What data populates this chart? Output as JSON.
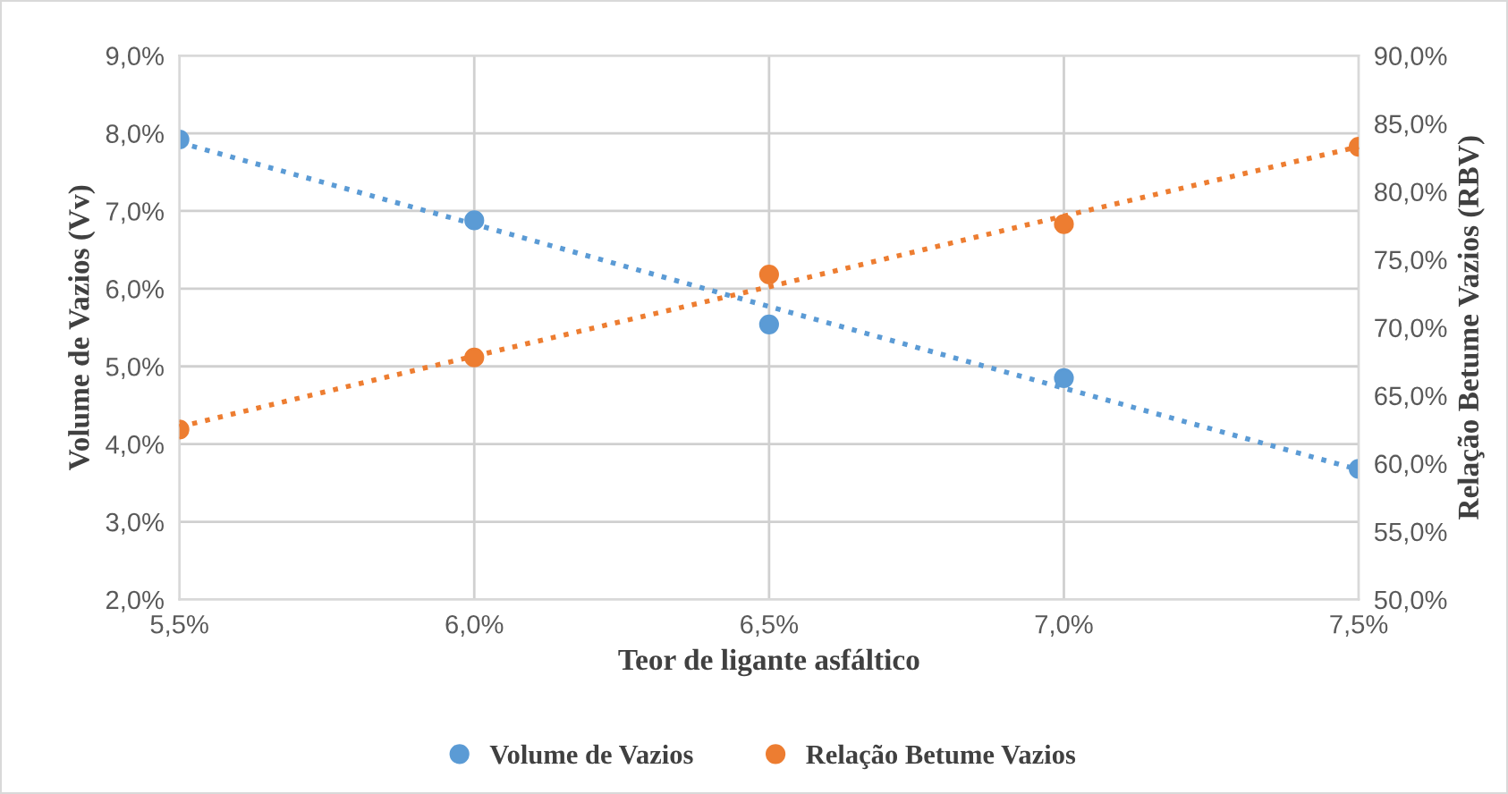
{
  "chart_data": {
    "type": "scatter",
    "xlabel": "Teor de ligante asfáltico",
    "ylabel": "Volume de Vazios (Vv)",
    "y2label": "Relação Betume Vazios (RBV)",
    "x": [
      5.5,
      6.0,
      6.5,
      7.0,
      7.5
    ],
    "series": [
      {
        "name": "Volume de Vazios",
        "color": "#5b9bd5",
        "values": [
          7.92,
          6.88,
          5.54,
          4.85,
          3.68
        ]
      },
      {
        "name": "Relação Betume Vazios",
        "color": "#ed7d31",
        "values": [
          62.5,
          67.8,
          73.9,
          77.6,
          83.3
        ],
        "axis": "y2"
      },
      {
        "type": "line",
        "color": "#5b9bd5",
        "values": [
          7.88,
          6.83,
          5.77,
          4.72,
          3.67
        ],
        "line_style": "dotted",
        "marker": "none"
      },
      {
        "type": "line",
        "color": "#ed7d31",
        "values": [
          62.7,
          67.9,
          73.0,
          78.2,
          83.3
        ],
        "axis": "y2",
        "line_style": "dotted",
        "marker": "none"
      }
    ],
    "marker": "circle",
    "grid": true,
    "legend": "bottom",
    "xlim": [
      5.5,
      7.5
    ],
    "xticks": [
      {
        "value": 5.5,
        "label": "5,5%"
      },
      {
        "value": 6.0,
        "label": "6,0%"
      },
      {
        "value": 6.5,
        "label": "6,5%"
      },
      {
        "value": 7.0,
        "label": "7,0%"
      },
      {
        "value": 7.5,
        "label": "7,5%"
      }
    ],
    "ylim": [
      2,
      9
    ],
    "yticks": [
      {
        "value": 2,
        "label": "2,0%"
      },
      {
        "value": 3,
        "label": "3,0%"
      },
      {
        "value": 4,
        "label": "4,0%"
      },
      {
        "value": 5,
        "label": "5,0%"
      },
      {
        "value": 6,
        "label": "6,0%"
      },
      {
        "value": 7,
        "label": "7,0%"
      },
      {
        "value": 8,
        "label": "8,0%"
      },
      {
        "value": 9,
        "label": "9,0%"
      }
    ],
    "y2lim": [
      50,
      90
    ],
    "y2ticks": [
      {
        "value": 50,
        "label": "50,0%"
      },
      {
        "value": 55,
        "label": "55,0%"
      },
      {
        "value": 60,
        "label": "60,0%"
      },
      {
        "value": 65,
        "label": "65,0%"
      },
      {
        "value": 70,
        "label": "70,0%"
      },
      {
        "value": 75,
        "label": "75,0%"
      },
      {
        "value": 80,
        "label": "80,0%"
      },
      {
        "value": 85,
        "label": "85,0%"
      },
      {
        "value": 90,
        "label": "90,0%"
      }
    ]
  }
}
